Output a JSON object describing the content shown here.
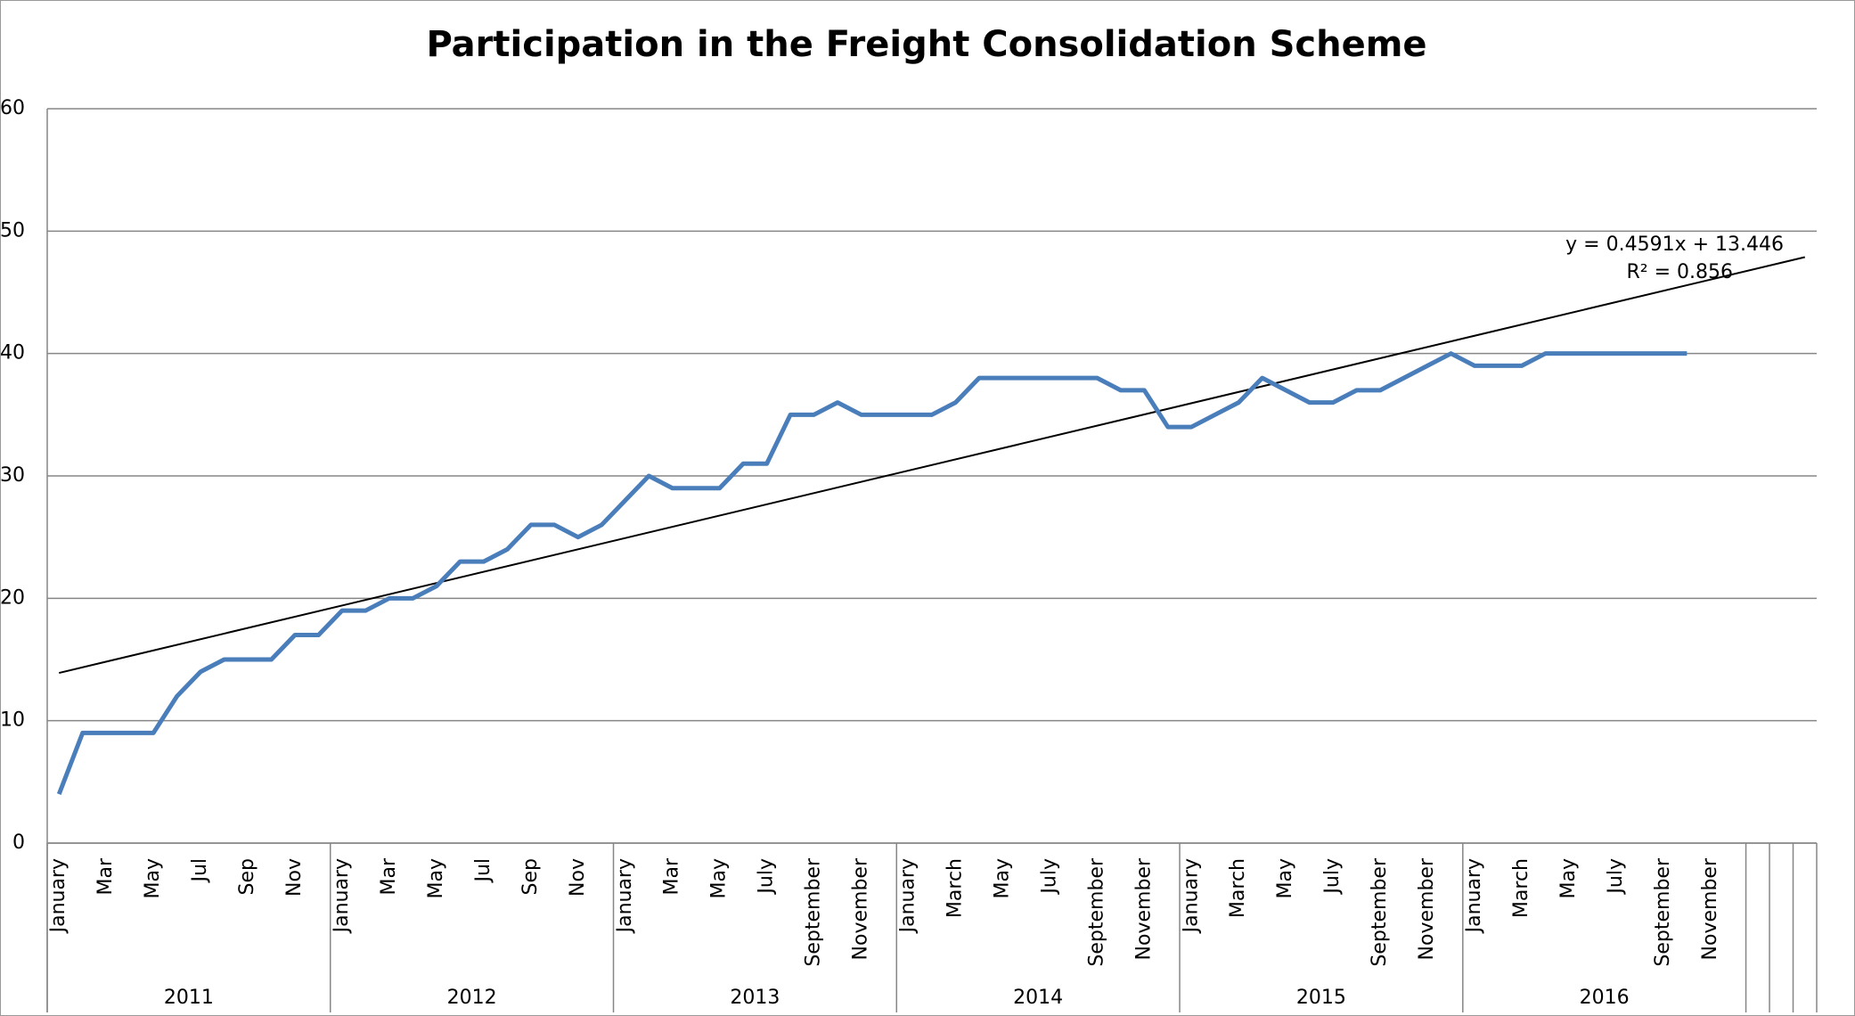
{
  "chart_data": {
    "type": "line",
    "title": "Participation in the Freight Consolidation Scheme",
    "categories": [
      "January",
      null,
      "Mar",
      null,
      "May",
      null,
      "Jul",
      null,
      "Sep",
      null,
      "Nov",
      null,
      "January",
      null,
      "Mar",
      null,
      "May",
      null,
      "Jul",
      null,
      "Sep",
      null,
      "Nov",
      null,
      "January",
      null,
      "Mar",
      null,
      "May",
      null,
      "July",
      null,
      "September",
      null,
      "November",
      null,
      "January",
      null,
      "March",
      null,
      "May",
      null,
      "July",
      null,
      "September",
      null,
      "November",
      null,
      "January",
      null,
      "March",
      null,
      "May",
      null,
      "July",
      null,
      "September",
      null,
      "November",
      null,
      "January",
      null,
      "March",
      null,
      "May",
      null,
      "July",
      null,
      "September",
      null,
      "November",
      null,
      null,
      null,
      null
    ],
    "category_groups": [
      "2011",
      "2011",
      "2011",
      "2011",
      "2011",
      "2011",
      "2011",
      "2011",
      "2011",
      "2011",
      "2011",
      "2011",
      "2012",
      "2012",
      "2012",
      "2012",
      "2012",
      "2012",
      "2012",
      "2012",
      "2012",
      "2012",
      "2012",
      "2012",
      "2013",
      "2013",
      "2013",
      "2013",
      "2013",
      "2013",
      "2013",
      "2013",
      "2013",
      "2013",
      "2013",
      "2013",
      "2014",
      "2014",
      "2014",
      "2014",
      "2014",
      "2014",
      "2014",
      "2014",
      "2014",
      "2014",
      "2014",
      "2014",
      "2015",
      "2015",
      "2015",
      "2015",
      "2015",
      "2015",
      "2015",
      "2015",
      "2015",
      "2015",
      "2015",
      "2015",
      "2016",
      "2016",
      "2016",
      "2016",
      "2016",
      "2016",
      "2016",
      "2016",
      "2016",
      "2016",
      "2016",
      "2016",
      null,
      null,
      null
    ],
    "series": [
      {
        "name": "Participation",
        "color": "#4a7ebb",
        "values": [
          4,
          9,
          9,
          9,
          9,
          12,
          14,
          15,
          15,
          15,
          17,
          17,
          19,
          19,
          20,
          20,
          21,
          23,
          23,
          24,
          26,
          26,
          25,
          26,
          28,
          30,
          29,
          29,
          29,
          31,
          31,
          35,
          35,
          36,
          35,
          35,
          35,
          35,
          36,
          38,
          38,
          38,
          38,
          38,
          38,
          37,
          37,
          34,
          34,
          35,
          36,
          38,
          37,
          36,
          36,
          37,
          37,
          38,
          39,
          40,
          39,
          39,
          39,
          40,
          40,
          40,
          40,
          40,
          40,
          40,
          null,
          null,
          null,
          null,
          null
        ]
      }
    ],
    "trendline": {
      "slope": 0.4591,
      "intercept": 13.446,
      "color": "#000000",
      "label": "y = 0.4591x + 13.446",
      "r2_label": "R² = 0.856"
    },
    "ylim": [
      0,
      60
    ],
    "yticks": [
      0,
      10,
      20,
      30,
      40,
      50,
      60
    ],
    "grid": true
  }
}
